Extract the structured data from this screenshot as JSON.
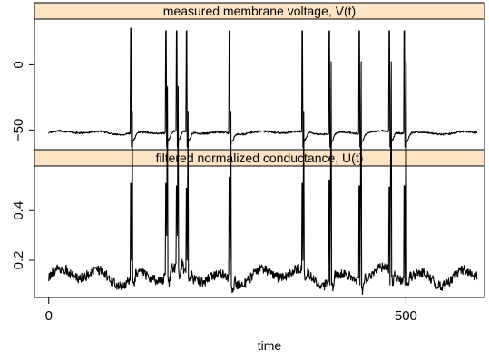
{
  "chart_data": {
    "type": "line",
    "x_axis": {
      "label": "time",
      "range": [
        -20,
        610
      ],
      "ticks": [
        0,
        500
      ],
      "tick_labels": [
        "0",
        "500"
      ]
    },
    "panels": [
      {
        "id": "voltage",
        "title": "measured membrane voltage, V(t)",
        "y_range": [
          -65,
          35
        ],
        "y_ticks": [
          0,
          -50
        ],
        "y_tick_labels": [
          "0",
          "−50"
        ],
        "baseline": -52,
        "trough": -63,
        "noise": 0.7,
        "spikes": [
          {
            "t": 115,
            "peak": 28
          },
          {
            "t": 164,
            "peak": 26
          },
          {
            "t": 179,
            "peak": 26
          },
          {
            "t": 193,
            "peak": 26
          },
          {
            "t": 253,
            "peak": 26
          },
          {
            "t": 355,
            "peak": 26
          },
          {
            "t": 393,
            "peak": 26
          },
          {
            "t": 435,
            "peak": 26
          },
          {
            "t": 477,
            "peak": 26
          },
          {
            "t": 498,
            "peak": 26
          }
        ]
      },
      {
        "id": "conductance",
        "title": "filtered normalized conductance, U(t)",
        "y_range": [
          0.05,
          0.58
        ],
        "y_ticks": [
          0.2,
          0.4
        ],
        "y_tick_labels": [
          "0.2",
          "0.4"
        ],
        "baseline": 0.135,
        "trough": 0.1,
        "noise": 0.02,
        "spikes": [
          {
            "t": 115,
            "peak": 0.51
          },
          {
            "t": 164,
            "peak": 0.51
          },
          {
            "t": 179,
            "peak": 0.5
          },
          {
            "t": 193,
            "peak": 0.49
          },
          {
            "t": 253,
            "peak": 0.535
          },
          {
            "t": 355,
            "peak": 0.51
          },
          {
            "t": 393,
            "peak": 0.52
          },
          {
            "t": 435,
            "peak": 0.5
          },
          {
            "t": 477,
            "peak": 0.495
          },
          {
            "t": 498,
            "peak": 0.5
          }
        ]
      }
    ],
    "t_end": 600,
    "grid": false,
    "legend": "none"
  }
}
